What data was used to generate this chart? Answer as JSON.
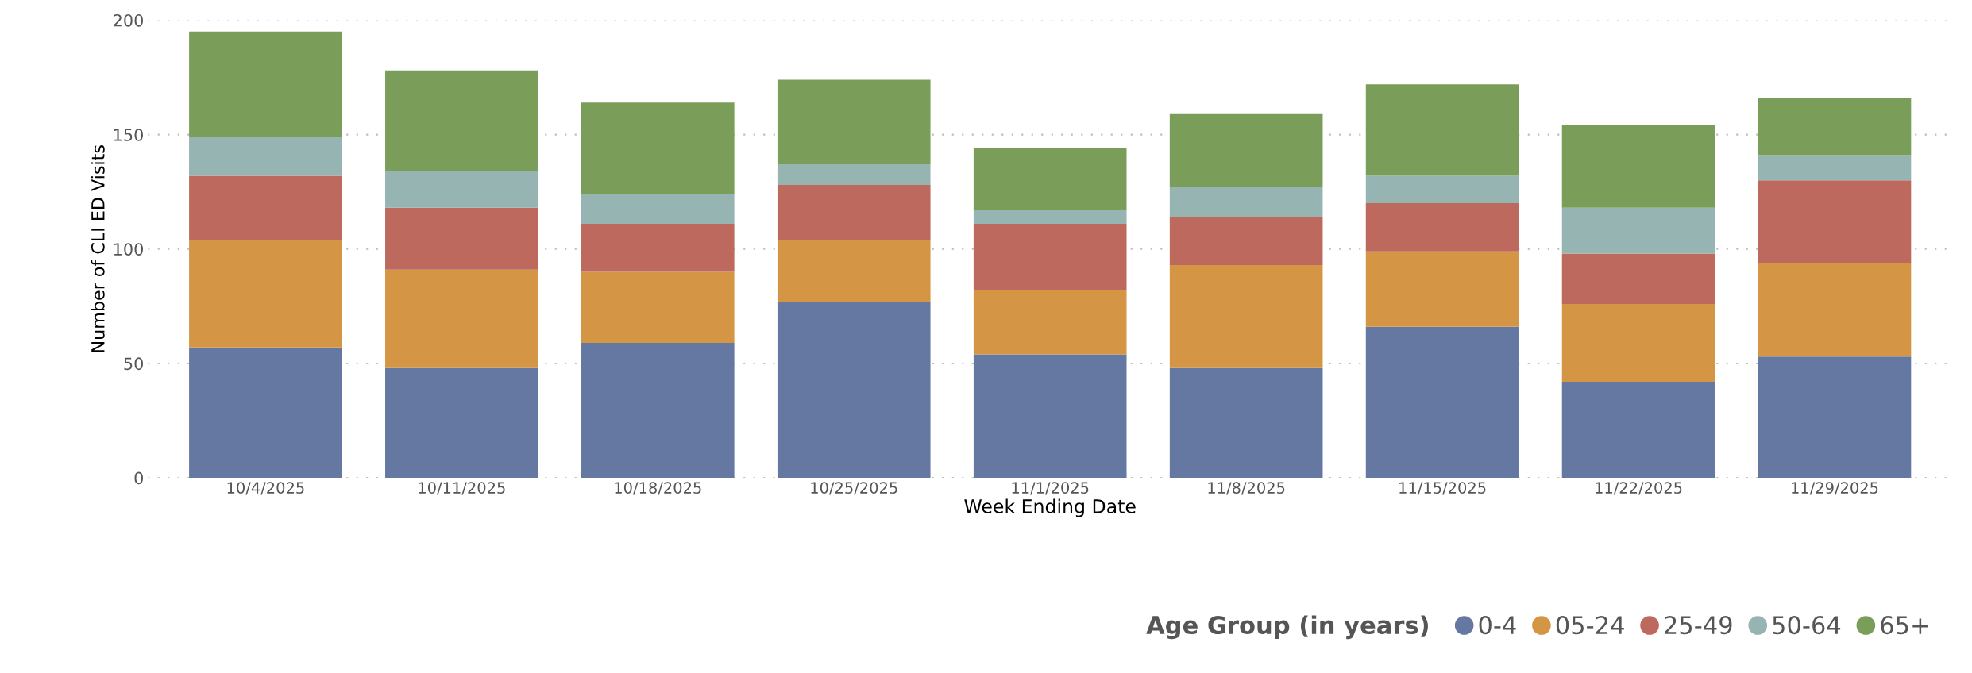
{
  "chart_data": {
    "type": "bar",
    "stacked": true,
    "xlabel": "Week Ending Date",
    "ylabel": "Number of CLI ED Visits",
    "legend_title": "Age Group (in years)",
    "legend": "bottom right",
    "grid": "y",
    "ylim": [
      0,
      200
    ],
    "yticks": [
      0,
      50,
      100,
      150,
      200
    ],
    "categories": [
      "10/4/2025",
      "10/11/2025",
      "10/18/2025",
      "10/25/2025",
      "11/1/2025",
      "11/8/2025",
      "11/15/2025",
      "11/22/2025",
      "11/29/2025"
    ],
    "series": [
      {
        "name": "0-4",
        "color": "#6578a2",
        "values": [
          57,
          48,
          59,
          77,
          54,
          48,
          66,
          42,
          53
        ]
      },
      {
        "name": "05-24",
        "color": "#d49644",
        "values": [
          47,
          43,
          31,
          27,
          28,
          45,
          33,
          34,
          41
        ]
      },
      {
        "name": "25-49",
        "color": "#bd695d",
        "values": [
          28,
          27,
          21,
          24,
          29,
          21,
          21,
          22,
          36
        ]
      },
      {
        "name": "50-64",
        "color": "#95b4b2",
        "values": [
          17,
          16,
          13,
          9,
          6,
          13,
          12,
          20,
          11
        ]
      },
      {
        "name": "65+",
        "color": "#7a9e5a",
        "values": [
          46,
          44,
          40,
          37,
          27,
          32,
          40,
          36,
          25
        ]
      }
    ]
  }
}
